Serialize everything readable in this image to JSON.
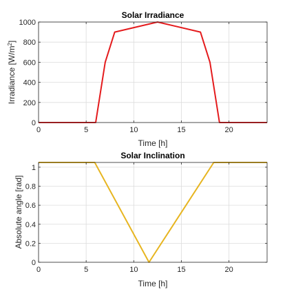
{
  "chart_data": [
    {
      "type": "line",
      "title": "Solar Irradiance",
      "xlabel": "Time [h]",
      "ylabel": "Irradiance [W/m",
      "ylabel_sup": "2",
      "ylabel_end": "]",
      "xlim": [
        0,
        24
      ],
      "ylim": [
        0,
        1000
      ],
      "xticks": [
        0,
        5,
        10,
        15,
        20
      ],
      "xtick_labels": [
        "0",
        "5",
        "10",
        "15",
        "20"
      ],
      "yticks": [
        0,
        200,
        400,
        600,
        800,
        1000
      ],
      "ytick_labels": [
        "0",
        "200",
        "400",
        "600",
        "800",
        "1000"
      ],
      "grid": true,
      "series": [
        {
          "color": "#e41a1c",
          "x": [
            0,
            6,
            7,
            8,
            12.5,
            17,
            18,
            19,
            24
          ],
          "y": [
            0,
            0,
            600,
            900,
            1000,
            900,
            600,
            0,
            0
          ]
        }
      ]
    },
    {
      "type": "line",
      "title": "Solar Inclination",
      "xlabel": "Time [h]",
      "ylabel": "Absolute angle [rad]",
      "xlim": [
        0,
        24
      ],
      "ylim": [
        0,
        1.05
      ],
      "xticks": [
        0,
        5,
        10,
        15,
        20
      ],
      "xtick_labels": [
        "0",
        "5",
        "10",
        "15",
        "20"
      ],
      "yticks": [
        0,
        0.2,
        0.4,
        0.6,
        0.8,
        1
      ],
      "ytick_labels": [
        "0",
        "0.2",
        "0.4",
        "0.6",
        "0.8",
        "1"
      ],
      "grid": true,
      "series": [
        {
          "color": "#e7b520",
          "x": [
            0,
            5.9,
            11.6,
            18.4,
            24
          ],
          "y": [
            1.05,
            1.05,
            0,
            1.05,
            1.05
          ]
        }
      ]
    }
  ]
}
